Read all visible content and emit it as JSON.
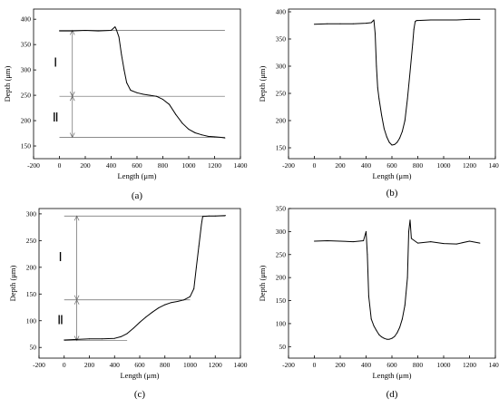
{
  "chart_data": [
    {
      "panel": "(a)",
      "type": "line",
      "xlabel": "Length (μm)",
      "ylabel": "Depth (μm)",
      "xlim": [
        -200,
        1400
      ],
      "ylim": [
        125,
        420
      ],
      "xticks": [
        -200,
        0,
        200,
        400,
        600,
        800,
        1000,
        1200,
        1400
      ],
      "yticks": [
        150,
        200,
        250,
        300,
        350,
        400
      ],
      "x": [
        0,
        100,
        200,
        300,
        400,
        430,
        440,
        460,
        480,
        500,
        520,
        550,
        600,
        650,
        700,
        750,
        800,
        850,
        900,
        950,
        1000,
        1050,
        1100,
        1150,
        1200,
        1250,
        1280
      ],
      "y": [
        377,
        377,
        378,
        377,
        378,
        385,
        380,
        365,
        330,
        300,
        275,
        260,
        255,
        252,
        250,
        248,
        242,
        232,
        212,
        195,
        183,
        176,
        172,
        169,
        168,
        167,
        166
      ],
      "reference_lines": [
        {
          "y": 378,
          "x_from": 0,
          "x_to": 1280
        },
        {
          "y": 248,
          "x_from": 0,
          "x_to": 1280
        },
        {
          "y": 167,
          "x_from": 0,
          "x_to": 1280
        }
      ],
      "arrow_x": 100,
      "zones": [
        {
          "label": "Ⅰ",
          "x": -30,
          "y": 315
        },
        {
          "label": "Ⅱ",
          "x": -30,
          "y": 207
        }
      ]
    },
    {
      "panel": "(b)",
      "type": "line",
      "xlabel": "Length (μm)",
      "ylabel": "Depth (μm)",
      "xlim": [
        -200,
        1400
      ],
      "ylim": [
        130,
        405
      ],
      "xticks": [
        -200,
        0,
        200,
        400,
        600,
        800,
        1000,
        1200,
        1400
      ],
      "yticks": [
        150,
        200,
        250,
        300,
        350,
        400
      ],
      "x": [
        0,
        100,
        200,
        300,
        400,
        440,
        460,
        470,
        480,
        490,
        500,
        520,
        540,
        560,
        580,
        600,
        620,
        640,
        660,
        680,
        700,
        720,
        740,
        760,
        770,
        780,
        790,
        800,
        900,
        1000,
        1100,
        1200,
        1280
      ],
      "y": [
        377,
        378,
        378,
        378,
        379,
        380,
        385,
        360,
        300,
        260,
        240,
        210,
        185,
        170,
        160,
        155,
        156,
        160,
        168,
        180,
        200,
        240,
        290,
        340,
        368,
        382,
        384,
        384,
        385,
        385,
        385,
        386,
        386
      ]
    },
    {
      "panel": "(c)",
      "type": "line",
      "xlabel": "Length (μm)",
      "ylabel": "Depth (μm)",
      "xlim": [
        -200,
        1400
      ],
      "ylim": [
        30,
        310
      ],
      "xticks": [
        -200,
        0,
        200,
        400,
        600,
        800,
        1000,
        1200,
        1400
      ],
      "yticks": [
        50,
        100,
        150,
        200,
        250,
        300
      ],
      "x": [
        0,
        100,
        200,
        300,
        400,
        450,
        500,
        550,
        600,
        650,
        700,
        750,
        800,
        850,
        900,
        950,
        1000,
        1030,
        1050,
        1070,
        1090,
        1100,
        1150,
        1200,
        1280
      ],
      "y": [
        64,
        65,
        66,
        66,
        67,
        70,
        76,
        86,
        97,
        107,
        116,
        124,
        130,
        134,
        136,
        139,
        145,
        160,
        200,
        240,
        280,
        295,
        296,
        296,
        297
      ],
      "reference_lines": [
        {
          "y": 296,
          "x_from": 0,
          "x_to": 1280
        },
        {
          "y": 139,
          "x_from": 0,
          "x_to": 1000
        },
        {
          "y": 63,
          "x_from": 0,
          "x_to": 500
        }
      ],
      "arrow_x": 100,
      "zones": [
        {
          "label": "Ⅰ",
          "x": -30,
          "y": 220
        },
        {
          "label": "Ⅱ",
          "x": -30,
          "y": 102
        }
      ]
    },
    {
      "panel": "(d)",
      "type": "line",
      "xlabel": "Length (μm)",
      "ylabel": "Depth (μm)",
      "xlim": [
        -200,
        1400
      ],
      "ylim": [
        25,
        350
      ],
      "xticks": [
        -200,
        0,
        200,
        400,
        600,
        800,
        1000,
        1200,
        1400
      ],
      "yticks": [
        50,
        100,
        150,
        200,
        250,
        300,
        350
      ],
      "x": [
        0,
        100,
        200,
        300,
        380,
        400,
        410,
        420,
        440,
        460,
        480,
        500,
        520,
        540,
        560,
        580,
        600,
        620,
        640,
        660,
        680,
        700,
        720,
        730,
        740,
        750,
        800,
        900,
        1000,
        1100,
        1200,
        1280
      ],
      "y": [
        279,
        280,
        279,
        278,
        280,
        300,
        250,
        160,
        110,
        95,
        85,
        76,
        71,
        68,
        66,
        66,
        68,
        72,
        80,
        92,
        110,
        140,
        200,
        300,
        325,
        285,
        275,
        278,
        274,
        273,
        279,
        275
      ]
    }
  ]
}
